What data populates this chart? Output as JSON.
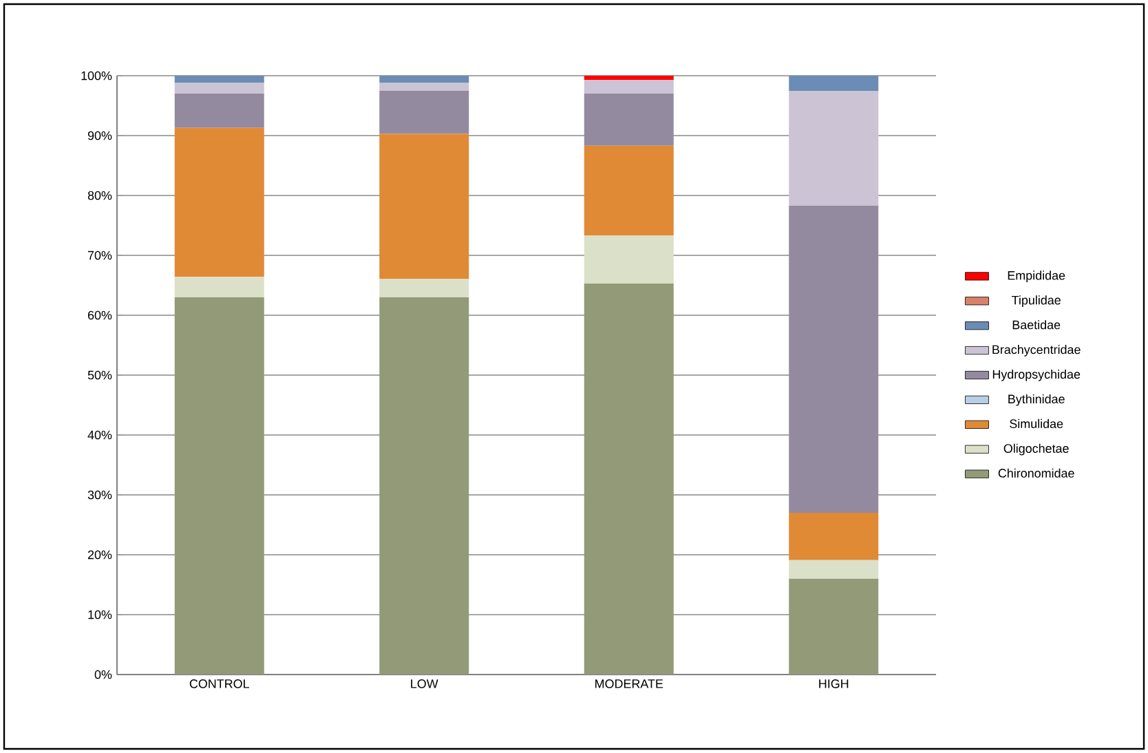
{
  "chart_data": {
    "type": "bar",
    "stacked": true,
    "categories": [
      "CONTROL",
      "LOW",
      "MODERATE",
      "HIGH"
    ],
    "series": [
      {
        "name": "Chironomidae",
        "color": "#929a78",
        "values": [
          63.0,
          63.0,
          65.3,
          16.0
        ]
      },
      {
        "name": "Oligochetae",
        "color": "#dbe0c8",
        "values": [
          3.4,
          3.1,
          8.0,
          3.1
        ]
      },
      {
        "name": "Simulidae",
        "color": "#e08a35",
        "values": [
          24.9,
          24.2,
          15.0,
          7.9
        ]
      },
      {
        "name": "Bythinidae",
        "color": "#b9cde5",
        "values": [
          0,
          0,
          0,
          0
        ]
      },
      {
        "name": "Hydropsychidae",
        "color": "#948aa0",
        "values": [
          5.7,
          7.2,
          8.7,
          51.3
        ]
      },
      {
        "name": "Brachycentridae",
        "color": "#ccc3d4",
        "values": [
          1.8,
          1.3,
          2.3,
          19.1
        ]
      },
      {
        "name": "Baetidae",
        "color": "#6b8cb4",
        "values": [
          1.2,
          1.2,
          0,
          2.6
        ]
      },
      {
        "name": "Tipulidae",
        "color": "#d9826a",
        "values": [
          0,
          0,
          0,
          0
        ]
      },
      {
        "name": "Empididae",
        "color": "#ff0000",
        "values": [
          0,
          0,
          0.7,
          0
        ]
      }
    ],
    "ylim": [
      0,
      100
    ],
    "yticks": [
      {
        "value": 0,
        "label": "0%"
      },
      {
        "value": 10,
        "label": "10%"
      },
      {
        "value": 20,
        "label": "20%"
      },
      {
        "value": 30,
        "label": "30%"
      },
      {
        "value": 40,
        "label": "40%"
      },
      {
        "value": 50,
        "label": "50%"
      },
      {
        "value": 60,
        "label": "60%"
      },
      {
        "value": 70,
        "label": "70%"
      },
      {
        "value": 80,
        "label": "80%"
      },
      {
        "value": 90,
        "label": "90%"
      },
      {
        "value": 100,
        "label": "100%"
      }
    ],
    "grid": "y",
    "legend": "right"
  }
}
